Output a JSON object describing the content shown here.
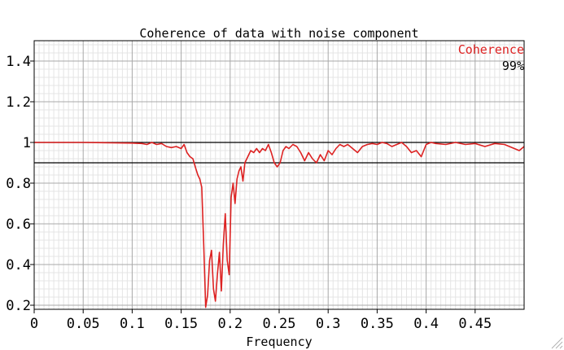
{
  "chart_data": {
    "type": "line",
    "title": "Coherence of data with noise component",
    "xlabel": "Frequency",
    "ylabel": "",
    "xlim": [
      0,
      0.5
    ],
    "ylim": [
      0.18,
      1.5
    ],
    "x_ticks": [
      "0",
      "0.05",
      "0.1",
      "0.15",
      "0.2",
      "0.25",
      "0.3",
      "0.35",
      "0.4",
      "0.45"
    ],
    "y_ticks": [
      "0.2",
      "0.4",
      "0.6",
      "0.8",
      "1",
      "1.2",
      "1.4"
    ],
    "grid": true,
    "minor_grid": true,
    "legend": {
      "placement": "top-right",
      "series_name": "Coherence",
      "confidence_label": "99%"
    },
    "reference_lines": [
      {
        "y": 1.0
      },
      {
        "y": 0.9
      }
    ],
    "series": [
      {
        "name": "Coherence",
        "color": "#dd2222",
        "x": [
          0,
          0.02,
          0.05,
          0.08,
          0.1,
          0.11,
          0.115,
          0.12,
          0.125,
          0.13,
          0.135,
          0.14,
          0.145,
          0.15,
          0.153,
          0.156,
          0.159,
          0.162,
          0.165,
          0.167,
          0.169,
          0.171,
          0.173,
          0.175,
          0.177,
          0.179,
          0.181,
          0.183,
          0.185,
          0.187,
          0.189,
          0.191,
          0.193,
          0.195,
          0.197,
          0.199,
          0.201,
          0.203,
          0.205,
          0.207,
          0.209,
          0.211,
          0.213,
          0.215,
          0.218,
          0.221,
          0.224,
          0.227,
          0.23,
          0.233,
          0.236,
          0.239,
          0.242,
          0.245,
          0.248,
          0.251,
          0.254,
          0.257,
          0.26,
          0.264,
          0.268,
          0.272,
          0.276,
          0.28,
          0.284,
          0.288,
          0.292,
          0.296,
          0.3,
          0.304,
          0.308,
          0.312,
          0.316,
          0.32,
          0.325,
          0.33,
          0.335,
          0.34,
          0.345,
          0.35,
          0.355,
          0.36,
          0.365,
          0.37,
          0.375,
          0.38,
          0.385,
          0.39,
          0.395,
          0.4,
          0.405,
          0.41,
          0.42,
          0.43,
          0.44,
          0.45,
          0.46,
          0.47,
          0.48,
          0.49,
          0.495,
          0.5
        ],
        "values": [
          1.0,
          1.0,
          1.0,
          0.998,
          0.997,
          0.995,
          0.99,
          1.0,
          0.99,
          0.995,
          0.98,
          0.975,
          0.98,
          0.97,
          0.99,
          0.95,
          0.93,
          0.92,
          0.87,
          0.84,
          0.82,
          0.78,
          0.5,
          0.19,
          0.25,
          0.42,
          0.47,
          0.28,
          0.22,
          0.35,
          0.46,
          0.27,
          0.5,
          0.65,
          0.42,
          0.35,
          0.73,
          0.8,
          0.7,
          0.82,
          0.86,
          0.88,
          0.81,
          0.9,
          0.93,
          0.96,
          0.95,
          0.97,
          0.95,
          0.97,
          0.96,
          0.99,
          0.95,
          0.9,
          0.88,
          0.9,
          0.96,
          0.98,
          0.97,
          0.99,
          0.98,
          0.95,
          0.91,
          0.95,
          0.92,
          0.9,
          0.94,
          0.91,
          0.96,
          0.94,
          0.97,
          0.99,
          0.98,
          0.99,
          0.97,
          0.95,
          0.98,
          0.99,
          0.995,
          0.99,
          1.0,
          0.995,
          0.98,
          0.99,
          1.0,
          0.98,
          0.95,
          0.96,
          0.93,
          0.99,
          1.0,
          0.995,
          0.99,
          1.0,
          0.99,
          0.995,
          0.98,
          0.995,
          0.99,
          0.97,
          0.96,
          0.98
        ]
      }
    ]
  }
}
